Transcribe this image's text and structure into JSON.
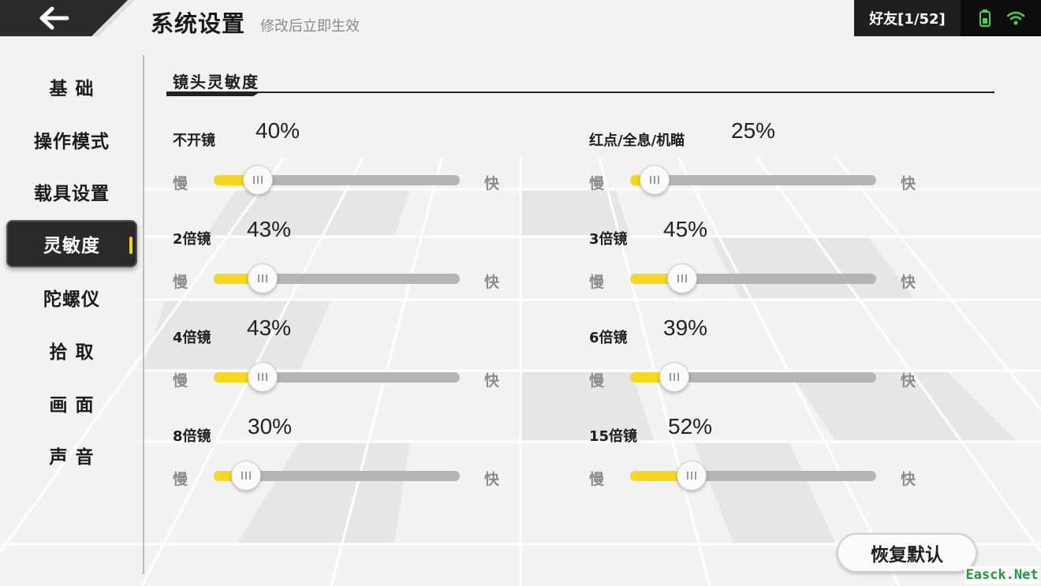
{
  "header": {
    "back_icon": "arrow-left-icon",
    "title": "系统设置",
    "subtitle": "修改后立即生效",
    "friends": "好友[1/52]",
    "battery_icon": "battery-icon",
    "wifi_icon": "wifi-icon",
    "battery_color": "#3cdc3c",
    "wifi_color": "#3cdc3c"
  },
  "sidebar": {
    "items": [
      {
        "label": "基 础",
        "active": false
      },
      {
        "label": "操作模式",
        "active": false
      },
      {
        "label": "载具设置",
        "active": false
      },
      {
        "label": "灵敏度",
        "active": true
      },
      {
        "label": "陀螺仪",
        "active": false
      },
      {
        "label": "拾 取",
        "active": false
      },
      {
        "label": "画 面",
        "active": false
      },
      {
        "label": "声 音",
        "active": false
      }
    ],
    "active_color": "#f2d324"
  },
  "section": {
    "title": "镜头灵敏度"
  },
  "sliders": {
    "slow_label": "慢",
    "fast_label": "快",
    "fill_color": "#f5d81f",
    "items": [
      {
        "label": "不开镜",
        "value": "40%",
        "level": 0.18
      },
      {
        "label": "红点/全息/机瞄",
        "value": "25%",
        "level": 0.1
      },
      {
        "label": "2倍镜",
        "value": "43%",
        "level": 0.2
      },
      {
        "label": "3倍镜",
        "value": "45%",
        "level": 0.21
      },
      {
        "label": "4倍镜",
        "value": "43%",
        "level": 0.2
      },
      {
        "label": "6倍镜",
        "value": "39%",
        "level": 0.18
      },
      {
        "label": "8倍镜",
        "value": "30%",
        "level": 0.13
      },
      {
        "label": "15倍镜",
        "value": "52%",
        "level": 0.25
      }
    ]
  },
  "footer": {
    "reset_label": "恢复默认",
    "watermark": "Easck.Net"
  }
}
